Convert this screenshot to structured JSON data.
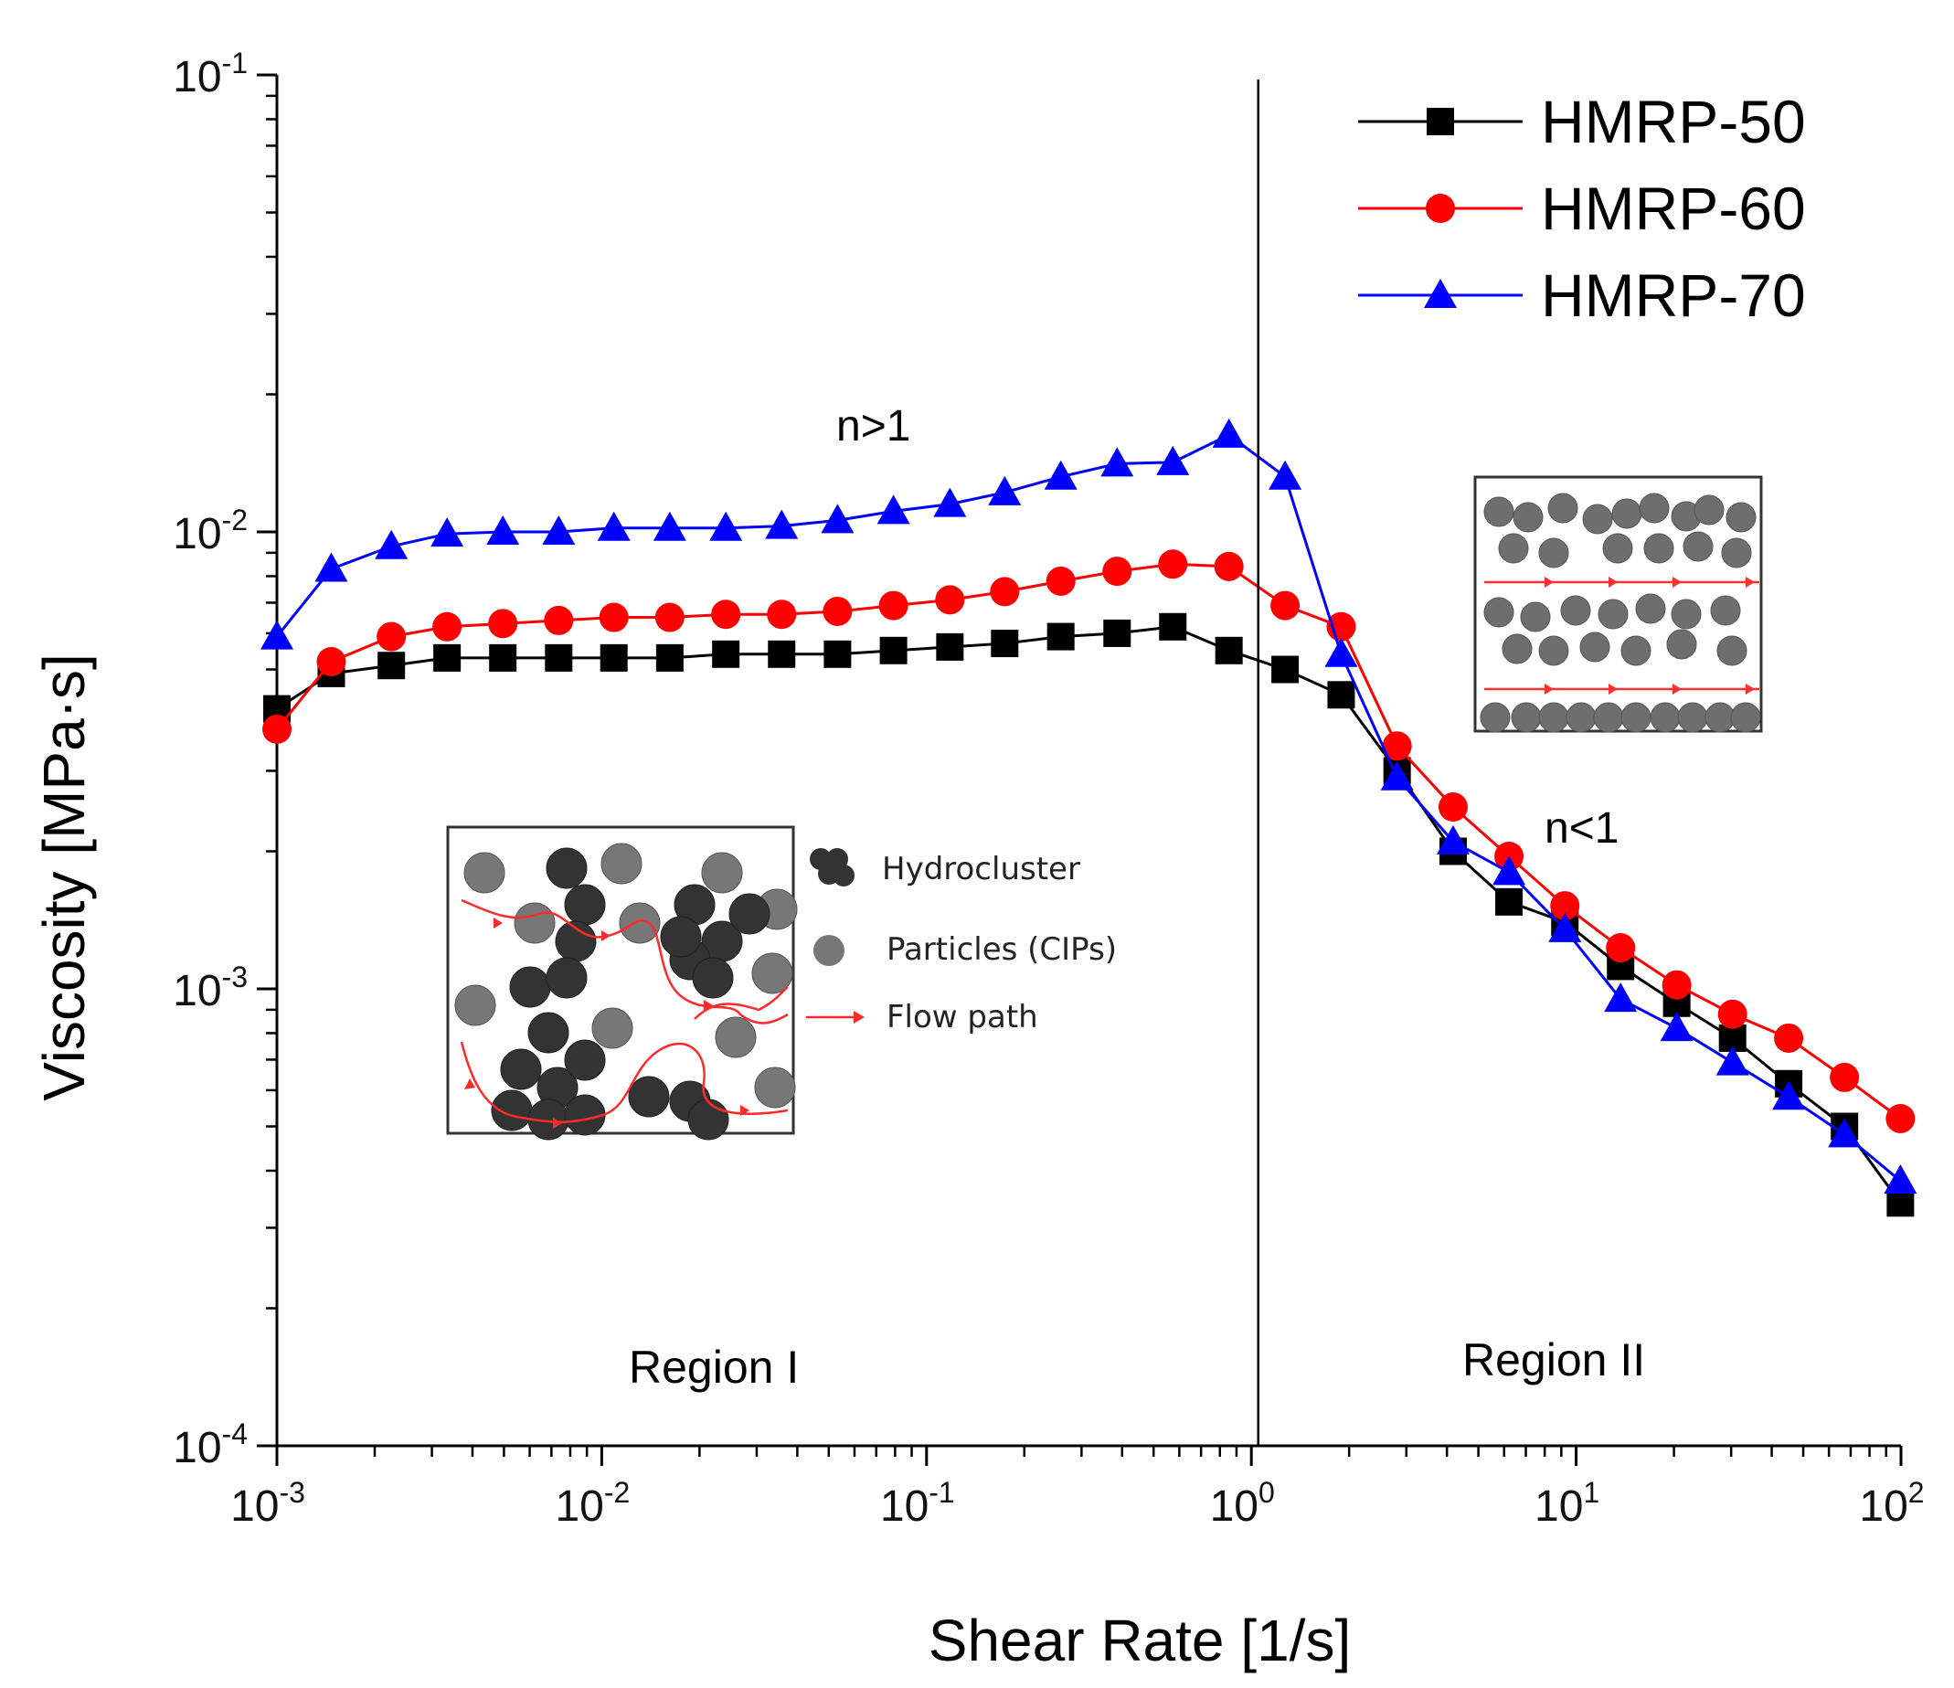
{
  "chart_data": {
    "type": "line",
    "title": "",
    "xlabel": "Shear Rate [1/s]",
    "ylabel": "Viscosity [MPa·s]",
    "xscale": "log",
    "yscale": "log",
    "xlim": [
      0.001,
      100
    ],
    "ylim": [
      0.0001,
      0.1
    ],
    "grid": false,
    "legend_position": "top-right",
    "x_ticks": [
      {
        "value": 0.001,
        "base": "10",
        "exp": "-3"
      },
      {
        "value": 0.01,
        "base": "10",
        "exp": "-2"
      },
      {
        "value": 0.1,
        "base": "10",
        "exp": "-1"
      },
      {
        "value": 1,
        "base": "10",
        "exp": "0"
      },
      {
        "value": 10,
        "base": "10",
        "exp": "1"
      },
      {
        "value": 100,
        "base": "10",
        "exp": "2"
      }
    ],
    "y_ticks": [
      {
        "value": 0.0001,
        "base": "10",
        "exp": "-4"
      },
      {
        "value": 0.001,
        "base": "10",
        "exp": "-3"
      },
      {
        "value": 0.01,
        "base": "10",
        "exp": "-2"
      },
      {
        "value": 0.1,
        "base": "10",
        "exp": "-1"
      }
    ],
    "x": [
      0.001,
      0.00147,
      0.00225,
      0.00334,
      0.00496,
      0.00737,
      0.0109,
      0.0162,
      0.0241,
      0.0358,
      0.0532,
      0.0791,
      0.118,
      0.174,
      0.259,
      0.386,
      0.573,
      0.853,
      1.27,
      1.89,
      2.81,
      4.18,
      6.21,
      9.23,
      13.7,
      20.4,
      30.3,
      45.1,
      67.0,
      99.6
    ],
    "series": [
      {
        "name": "HMRP-50",
        "color": "#000000",
        "marker": "square",
        "values": [
          0.0041,
          0.0049,
          0.0051,
          0.0053,
          0.0053,
          0.0053,
          0.0053,
          0.0053,
          0.0054,
          0.0054,
          0.0054,
          0.0055,
          0.0056,
          0.0057,
          0.0059,
          0.006,
          0.0062,
          0.0055,
          0.005,
          0.0044,
          0.003,
          0.002,
          0.00155,
          0.0014,
          0.00112,
          0.00093,
          0.00078,
          0.00062,
          0.0005,
          0.00034
        ]
      },
      {
        "name": "HMRP-60",
        "color": "#ff0000",
        "marker": "circle",
        "values": [
          0.0037,
          0.0052,
          0.0059,
          0.0062,
          0.0063,
          0.0064,
          0.0065,
          0.0065,
          0.0066,
          0.0066,
          0.0067,
          0.0069,
          0.0071,
          0.0074,
          0.0078,
          0.0082,
          0.0085,
          0.0084,
          0.0069,
          0.0062,
          0.0034,
          0.0025,
          0.00195,
          0.00152,
          0.00123,
          0.00102,
          0.00088,
          0.00078,
          0.00064,
          0.00052
        ]
      },
      {
        "name": "HMRP-70",
        "color": "#0000ff",
        "marker": "triangle",
        "values": [
          0.0059,
          0.0083,
          0.0093,
          0.0099,
          0.01,
          0.01,
          0.0102,
          0.0102,
          0.0102,
          0.0103,
          0.0106,
          0.0111,
          0.0115,
          0.0122,
          0.0132,
          0.0141,
          0.0142,
          0.0163,
          0.0132,
          0.0054,
          0.0029,
          0.0021,
          0.0018,
          0.00135,
          0.00095,
          0.00082,
          0.00069,
          0.00058,
          0.00048,
          0.00038
        ]
      }
    ],
    "annotations": {
      "n_greater": "n>1",
      "n_less": "n<1",
      "region_1": "Region I",
      "region_2": "Region II",
      "divider_x": 1.05
    },
    "inset_legend": {
      "hydrocluster": "Hydrocluster",
      "particles": "Particles (CIPs)",
      "flow_path": "Flow path"
    },
    "colors": {
      "axis": "#000000",
      "particle_gray": "#6e6e6e",
      "cluster_dark": "#333333",
      "flow_red": "#ff2a2a"
    }
  }
}
